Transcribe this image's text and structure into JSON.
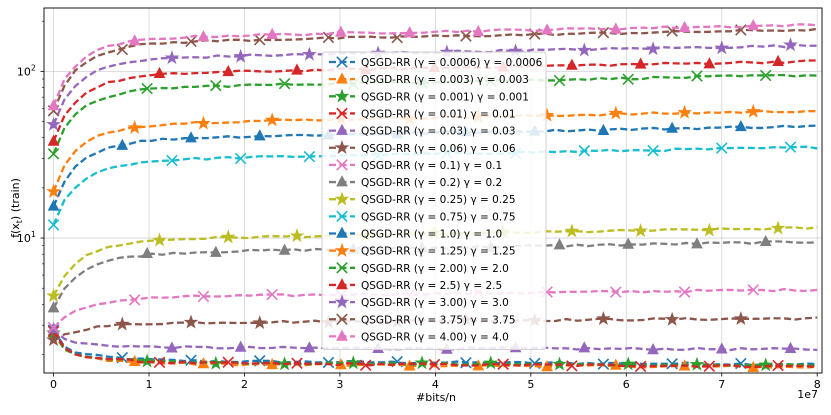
{
  "chart_data": {
    "type": "line",
    "title": "",
    "xlabel": "#bits/n",
    "ylabel": "f(x_t) (train)",
    "ylabel_main": "f(x",
    "ylabel_sub": "t",
    "ylabel_tail": ") (train)",
    "x_scale_note": "1e7",
    "xlim": [
      -0.1,
      8.05
    ],
    "ylim_log": [
      1.55,
      240
    ],
    "x_ticks": [
      0,
      1,
      2,
      3,
      4,
      5,
      6,
      7,
      8
    ],
    "x_tick_labels": [
      "0",
      "1",
      "2",
      "3",
      "4",
      "5",
      "6",
      "7",
      "8"
    ],
    "y_major_ticks": [
      10,
      100
    ],
    "y_tick_labels": [
      "10",
      "10"
    ],
    "y_tick_exps": [
      "1",
      "2"
    ],
    "grid": true,
    "legend_position": "center",
    "series": [
      {
        "name": "QSGD-RR (γ = 0.0006) γ = 0.0006",
        "color": "#1f77b4",
        "marker": "x",
        "start": 2.8,
        "end": 1.75,
        "kind": "down"
      },
      {
        "name": "QSGD-RR (γ = 0.003) γ = 0.003",
        "color": "#ff7f0e",
        "marker": "^",
        "start": 2.7,
        "end": 1.68,
        "kind": "down"
      },
      {
        "name": "QSGD-RR (γ = 0.001) γ = 0.001",
        "color": "#2ca02c",
        "marker": "*",
        "start": 2.7,
        "end": 1.72,
        "kind": "down"
      },
      {
        "name": "QSGD-RR (γ = 0.01) γ = 0.01",
        "color": "#d62728",
        "marker": "x",
        "start": 2.75,
        "end": 1.7,
        "kind": "down"
      },
      {
        "name": "QSGD-RR (γ = 0.03) γ = 0.03",
        "color": "#9467bd",
        "marker": "^",
        "start": 2.85,
        "end": 2.15,
        "kind": "down"
      },
      {
        "name": "QSGD-RR (γ = 0.06) γ = 0.06",
        "color": "#8c564b",
        "marker": "*",
        "start": 2.45,
        "end": 3.3,
        "kind": "up"
      },
      {
        "name": "QSGD-RR (γ = 0.1) γ = 0.1",
        "color": "#e377c2",
        "marker": "x",
        "start": 2.9,
        "end": 4.9,
        "kind": "up"
      },
      {
        "name": "QSGD-RR (γ = 0.2) γ = 0.2",
        "color": "#7f7f7f",
        "marker": "^",
        "start": 3.8,
        "end": 9.5,
        "kind": "up"
      },
      {
        "name": "QSGD-RR (γ = 0.25) γ = 0.25",
        "color": "#bcbd22",
        "marker": "*",
        "start": 4.5,
        "end": 11.5,
        "kind": "up"
      },
      {
        "name": "QSGD-RR (γ = 0.75) γ = 0.75",
        "color": "#17becf",
        "marker": "x",
        "start": 12,
        "end": 35,
        "kind": "up"
      },
      {
        "name": "QSGD-RR (γ = 1.0) γ = 1.0",
        "color": "#1f77b4",
        "marker": "^",
        "start": 15.5,
        "end": 47,
        "kind": "up"
      },
      {
        "name": "QSGD-RR (γ = 1.25) γ = 1.25",
        "color": "#ff7f0e",
        "marker": "*",
        "start": 19,
        "end": 58,
        "kind": "up"
      },
      {
        "name": "QSGD-RR (γ = 2.00) γ = 2.0",
        "color": "#2ca02c",
        "marker": "x",
        "start": 32,
        "end": 95,
        "kind": "up"
      },
      {
        "name": "QSGD-RR (γ = 2.5) γ = 2.5",
        "color": "#d62728",
        "marker": "^",
        "start": 38,
        "end": 115,
        "kind": "up"
      },
      {
        "name": "QSGD-RR (γ = 3.00) γ = 3.0",
        "color": "#9467bd",
        "marker": "*",
        "start": 48,
        "end": 143,
        "kind": "up"
      },
      {
        "name": "QSGD-RR (γ = 3.75) γ = 3.75",
        "color": "#8c564b",
        "marker": "x",
        "start": 58,
        "end": 178,
        "kind": "up"
      },
      {
        "name": "QSGD-RR (γ = 4.00) γ = 4.0",
        "color": "#e377c2",
        "marker": "^",
        "start": 62,
        "end": 190,
        "kind": "up"
      }
    ]
  }
}
